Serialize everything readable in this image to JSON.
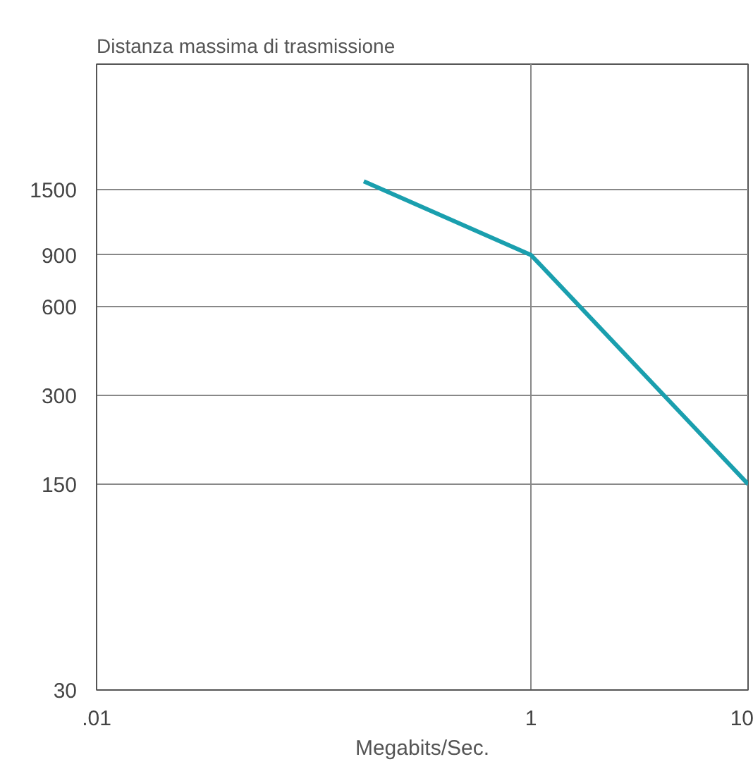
{
  "chart_data": {
    "type": "line",
    "title": "Distanza massima di trasmissione",
    "xlabel": "Megabits/Sec.",
    "x": [
      0.17,
      1,
      10
    ],
    "series": [
      {
        "color": "#1a9fae",
        "values": [
          1600,
          900,
          150
        ]
      }
    ],
    "log": "xy",
    "xlim": [
      0.01,
      10
    ],
    "xticks": [
      {
        "value": 0.01,
        "label": ".01"
      },
      1,
      10
    ],
    "ylim": [
      30,
      4000
    ],
    "yticks": [
      30,
      150,
      300,
      600,
      900,
      1500
    ],
    "grid": true,
    "marker": "none",
    "line_style": "solid"
  }
}
